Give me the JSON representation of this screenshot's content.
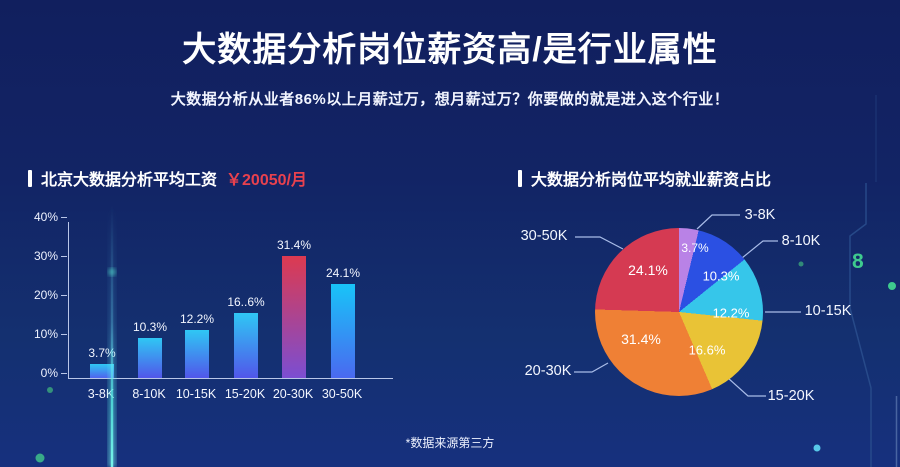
{
  "page": {
    "title": "大数据分析岗位薪资高/是行业属性",
    "subtitle": "大数据分析从业者86%以上月薪过万，想月薪过万？你要做的就是进入这个行业！",
    "footnote": "*数据来源第三方",
    "background_top": "#111f5e",
    "background_bottom": "#16307e"
  },
  "chart_data": [
    {
      "type": "bar",
      "title": "北京大数据分析平均工资",
      "title_highlight": "￥20050/月",
      "title_highlight_color": "#e8414e",
      "categories": [
        "3-8K",
        "8-10K",
        "10-15K",
        "15-20K",
        "20-30K",
        "30-50K"
      ],
      "values": [
        3.7,
        10.3,
        12.2,
        16.6,
        31.4,
        24.1
      ],
      "value_labels": [
        "3.7%",
        "10.3%",
        "12.2%",
        "16..6%",
        "31.4%",
        "24.1%"
      ],
      "xlabel": "",
      "ylabel": "",
      "ylim": [
        0,
        40
      ],
      "yticks": [
        "0%",
        "10%",
        "20%",
        "30%",
        "40%"
      ],
      "grid": false,
      "bar_gradients": [
        [
          "#2fc7f4",
          "#4f63ee"
        ],
        [
          "#2fc7f4",
          "#5156ea"
        ],
        [
          "#2fc7f4",
          "#5156ea"
        ],
        [
          "#2fc7f4",
          "#5156ea"
        ],
        [
          "#dc3a50",
          "#7b4ed2"
        ],
        [
          "#18c4f8",
          "#4a69f0"
        ]
      ],
      "axis_color": "#b9c6e8"
    },
    {
      "type": "pie",
      "title": "大数据分析岗位平均就业薪资占比",
      "categories": [
        "3-8K",
        "8-10K",
        "10-15K",
        "15-20K",
        "20-30K",
        "30-50K"
      ],
      "values": [
        3.7,
        10.3,
        12.2,
        16.6,
        31.4,
        24.1
      ],
      "labels": [
        "3.7%",
        "10.3%",
        "12.2%",
        "16.6%",
        "31.4%",
        "24.1%"
      ],
      "colors": [
        "#b982e6",
        "#2b50e3",
        "#36c6ea",
        "#e9c336",
        "#ef8035",
        "#d53a52"
      ],
      "legend_position": "outside-callouts",
      "start_angle_deg": 0,
      "direction": "clockwise"
    }
  ],
  "decor": {
    "glyph": "8",
    "glyph_color": "#3ecb8e"
  }
}
